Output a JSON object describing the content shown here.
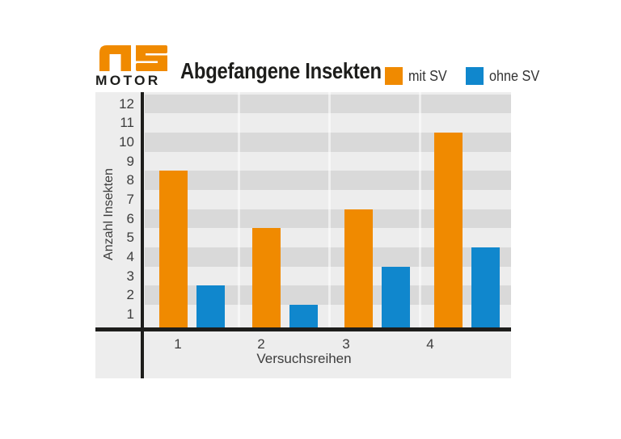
{
  "logo": {
    "brand_top": "AS",
    "brand_bottom": "MOTOR"
  },
  "title": "Abgefangene Insekten",
  "legend": [
    {
      "label": "mit SV",
      "color": "#F08A00"
    },
    {
      "label": "ohne SV",
      "color": "#1087CD"
    }
  ],
  "chart_data": {
    "type": "bar",
    "title": "Abgefangene Insekten",
    "categories": [
      "1",
      "2",
      "3",
      "4"
    ],
    "series": [
      {
        "name": "mit SV",
        "color": "#F08A00",
        "values": [
          8.5,
          5.5,
          6.5,
          10.5
        ]
      },
      {
        "name": "ohne SV",
        "color": "#1087CD",
        "values": [
          2.5,
          1.5,
          3.5,
          4.5
        ]
      }
    ],
    "xlabel": "Versuchsreihen",
    "ylabel": "Anzahl Insekten",
    "ylim": [
      0,
      12.5
    ],
    "yticks": [
      1,
      2,
      3,
      4,
      5,
      6,
      7,
      8,
      9,
      10,
      11,
      12
    ],
    "grid": "alternating horizontal gray bands, one unit tall, centered on integer ticks",
    "band_colors": {
      "dark": "#D9D9D9",
      "light": "#EDEDED"
    },
    "legend_position": "top-right"
  },
  "colors": {
    "orange": "#F08A00",
    "blue": "#1087CD",
    "panel_background": "#EDEDED",
    "band_dark": "#D9D9D9",
    "axis": "#1d1d1b",
    "text": "#3d3d3d"
  }
}
